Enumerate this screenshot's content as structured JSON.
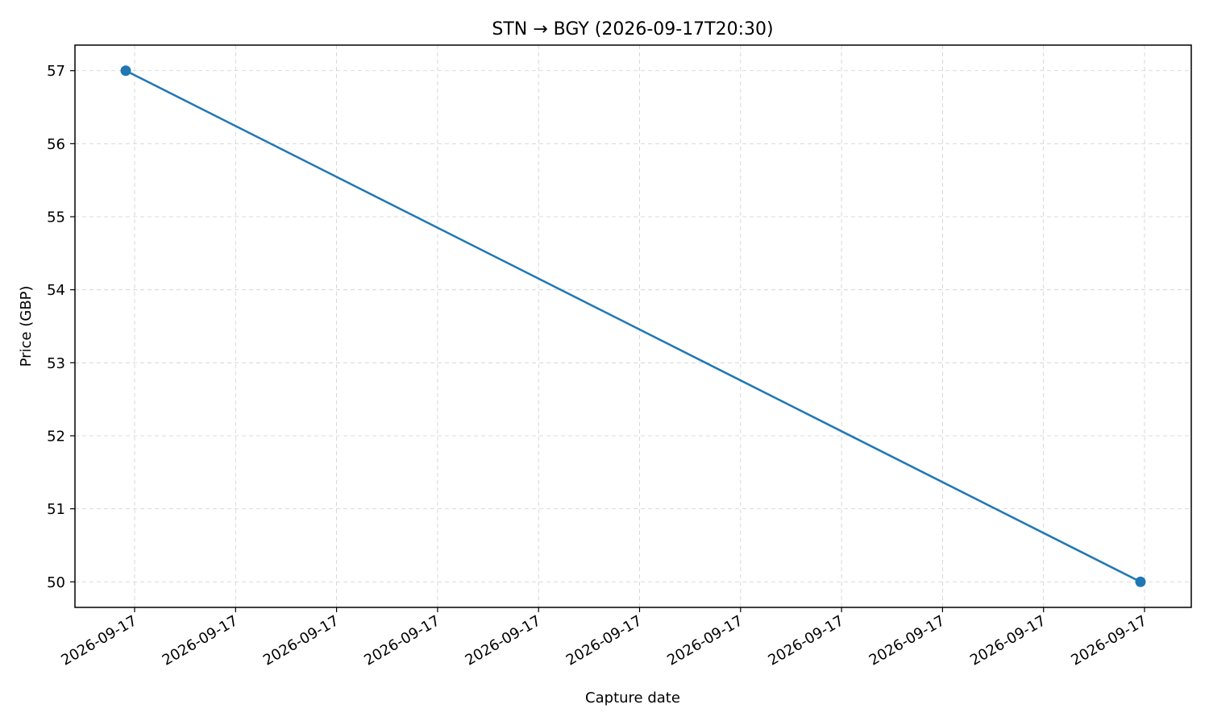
{
  "chart_data": {
    "type": "line",
    "title": "STN → BGY (2026-09-17T20:30)",
    "xlabel": "Capture date",
    "ylabel": "Price (GBP)",
    "grid": true,
    "x_tick_labels": [
      "2026-09-17",
      "2026-09-17",
      "2026-09-17",
      "2026-09-17",
      "2026-09-17",
      "2026-09-17",
      "2026-09-17",
      "2026-09-17",
      "2026-09-17",
      "2026-09-17",
      "2026-09-17"
    ],
    "y_ticks": [
      50,
      51,
      52,
      53,
      54,
      55,
      56,
      57
    ],
    "ylim": [
      49.65,
      57.35
    ],
    "series": [
      {
        "color": "#1f77b4",
        "marker": "circle",
        "points": [
          {
            "x": "2026-09-17",
            "y": 57
          },
          {
            "x": "2026-09-17",
            "y": 50
          }
        ]
      }
    ]
  }
}
